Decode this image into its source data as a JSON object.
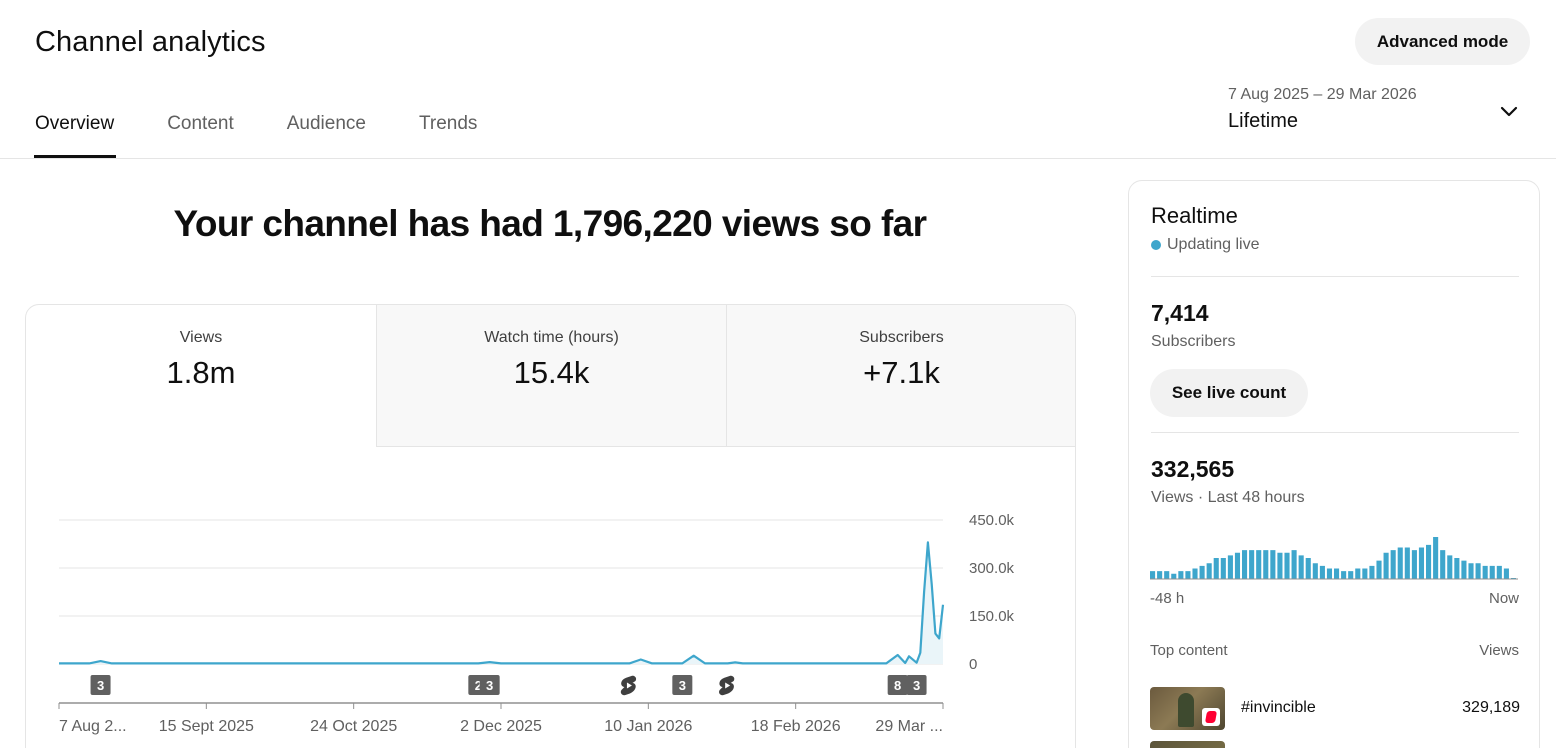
{
  "header": {
    "title": "Channel analytics",
    "advanced_mode_label": "Advanced mode",
    "date_range": "7 Aug 2025 – 29 Mar 2026",
    "period": "Lifetime"
  },
  "tabs": [
    {
      "label": "Overview",
      "active": true
    },
    {
      "label": "Content",
      "active": false
    },
    {
      "label": "Audience",
      "active": false
    },
    {
      "label": "Trends",
      "active": false
    }
  ],
  "headline": "Your channel has had 1,796,220 views so far",
  "metrics": [
    {
      "label": "Views",
      "value": "1.8m",
      "selected": true
    },
    {
      "label": "Watch time (hours)",
      "value": "15.4k",
      "selected": false
    },
    {
      "label": "Subscribers",
      "value": "+7.1k",
      "selected": false
    }
  ],
  "colors": {
    "accent": "#3ea6cc",
    "badge": "#606060",
    "chart_fill": "#eaf5f9"
  },
  "chart_data": {
    "type": "line",
    "title": "",
    "xlabel": "",
    "ylabel": "",
    "ylim": [
      0,
      450000
    ],
    "y_ticks": [
      0,
      150000,
      300000,
      450000
    ],
    "y_tick_labels": [
      "0",
      "150.0k",
      "300.0k",
      "450.0k"
    ],
    "x_tick_labels": [
      "7 Aug 2...",
      "15 Sept 2025",
      "24 Oct 2025",
      "2 Dec 2025",
      "10 Jan 2026",
      "18 Feb 2026",
      "29 Mar ..."
    ],
    "x_range": [
      "2025-08-07",
      "2026-03-29"
    ],
    "grid": true,
    "series": [
      {
        "x": [
          "2025-08-07",
          "2025-08-15",
          "2025-08-18",
          "2025-08-21",
          "2025-09-15",
          "2025-10-24",
          "2025-11-26",
          "2025-11-29",
          "2025-12-02",
          "2026-01-05",
          "2026-01-08",
          "2026-01-11",
          "2026-01-19",
          "2026-01-22",
          "2026-01-25",
          "2026-01-31",
          "2026-02-02",
          "2026-02-04",
          "2026-02-18",
          "2026-03-14",
          "2026-03-17",
          "2026-03-19",
          "2026-03-20",
          "2026-03-22",
          "2026-03-23",
          "2026-03-24",
          "2026-03-25",
          "2026-03-26",
          "2026-03-27",
          "2026-03-28",
          "2026-03-29"
        ],
        "values": [
          2000,
          2000,
          9000,
          2000,
          2000,
          2000,
          2000,
          6000,
          2000,
          2000,
          14000,
          2000,
          2000,
          26000,
          2000,
          2000,
          5000,
          2000,
          2000,
          2000,
          28000,
          3000,
          24000,
          4000,
          35000,
          225000,
          380000,
          250000,
          95000,
          80000,
          185000
        ]
      }
    ],
    "annotations": [
      {
        "date": "2025-08-18",
        "label": "3"
      },
      {
        "date": "2025-11-26",
        "label": "2"
      },
      {
        "date": "2025-11-29",
        "label": "3"
      },
      {
        "date": "2026-01-05",
        "label": "shorts-icon"
      },
      {
        "date": "2026-01-19",
        "label": "3"
      },
      {
        "date": "2026-01-31",
        "label": "shorts-icon"
      },
      {
        "date": "2026-03-17",
        "label": "8"
      },
      {
        "date": "2026-03-22",
        "label": "3"
      }
    ]
  },
  "realtime": {
    "title": "Realtime",
    "status": "Updating live",
    "subscribers_value": "7,414",
    "subscribers_label": "Subscribers",
    "live_count_label": "See live count",
    "views_value": "332,565",
    "views_label": "Views · Last 48 hours",
    "axis_start": "-48 h",
    "axis_end": "Now",
    "bars": [
      3,
      3,
      3,
      2,
      3,
      3,
      4,
      5,
      6,
      8,
      8,
      9,
      10,
      11,
      11,
      11,
      11,
      11,
      10,
      10,
      11,
      9,
      8,
      6,
      5,
      4,
      4,
      3,
      3,
      4,
      4,
      5,
      7,
      10,
      11,
      12,
      12,
      11,
      12,
      13,
      16,
      11,
      9,
      8,
      7,
      6,
      6,
      5,
      5,
      5,
      4,
      0
    ],
    "top_content_header": "Top content",
    "views_header": "Views",
    "top_items": [
      {
        "title": "#invincible",
        "views": "329,189",
        "thumb_icon": "shorts-icon"
      }
    ]
  }
}
